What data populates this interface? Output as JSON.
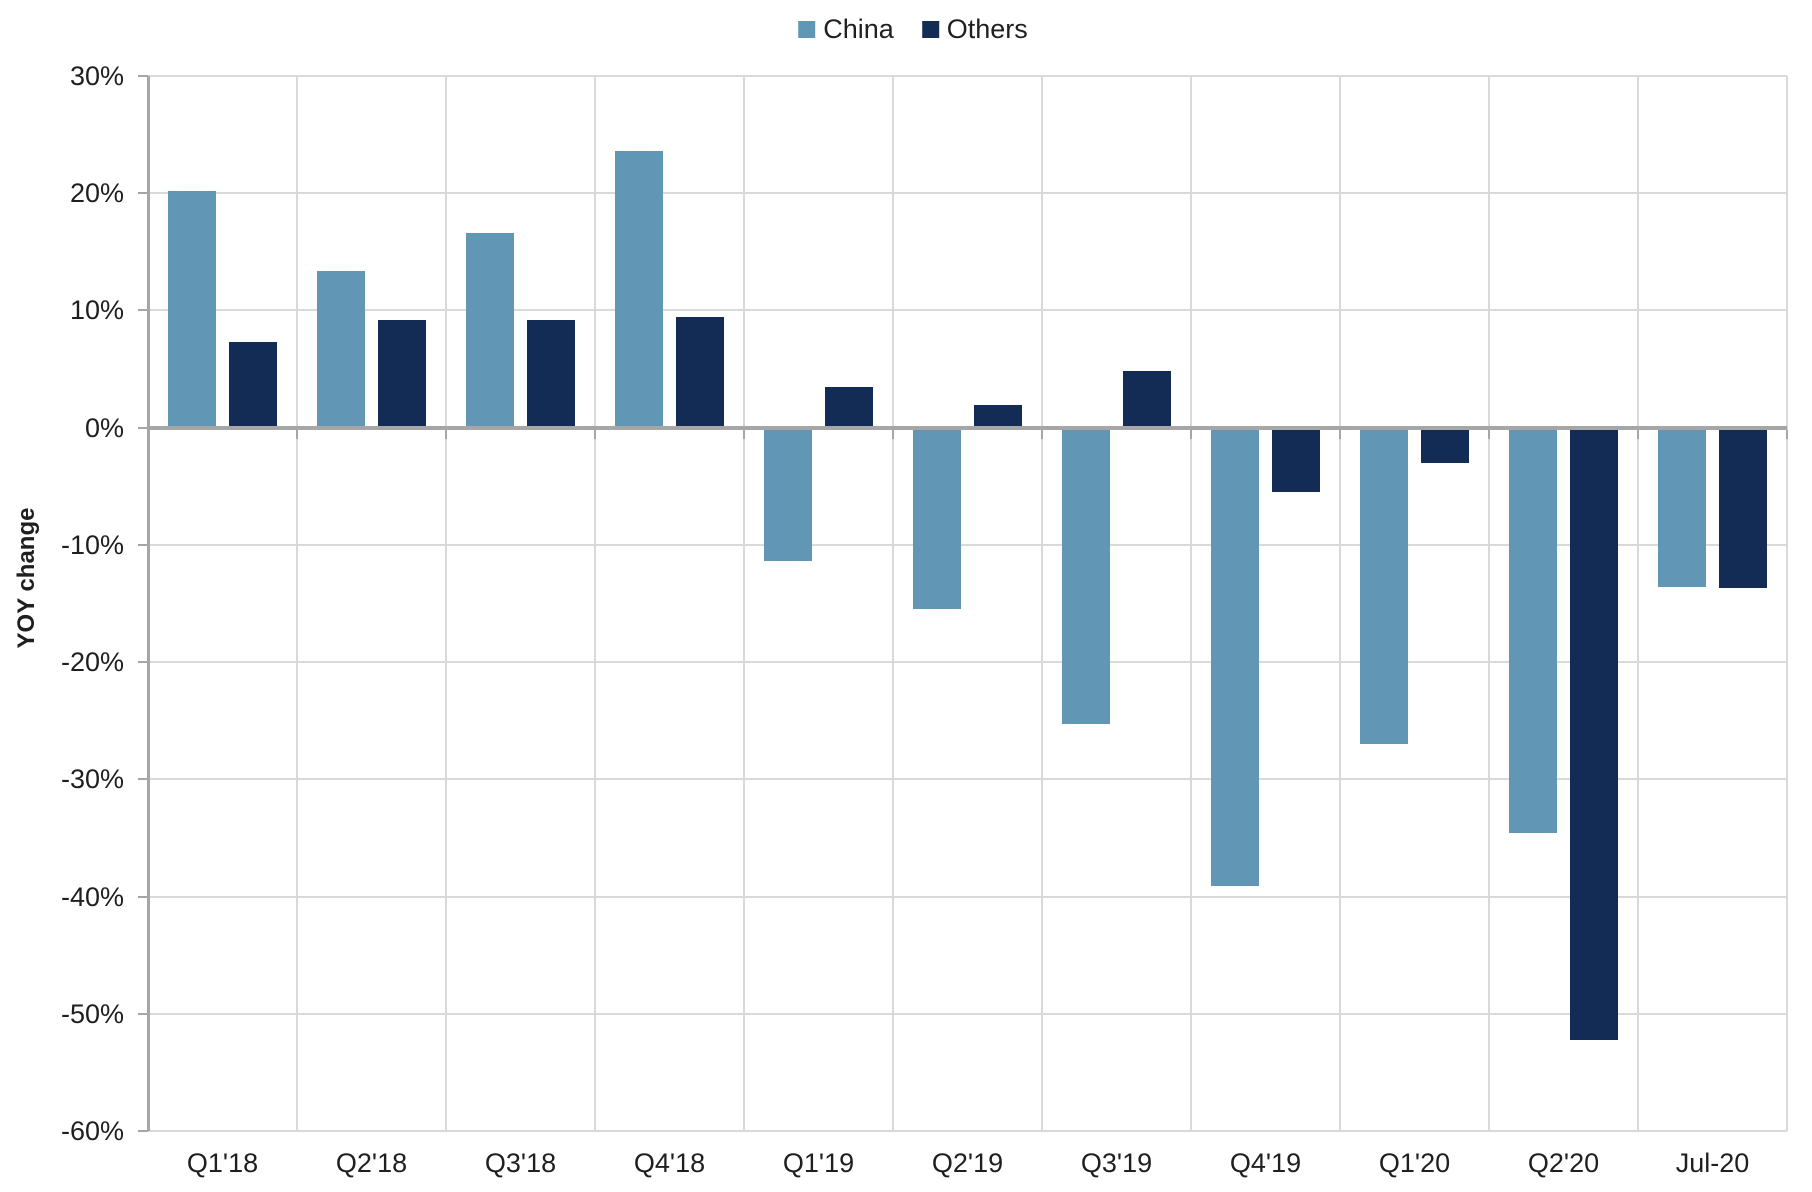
{
  "chart_data": {
    "type": "bar",
    "title": "",
    "xlabel": "",
    "ylabel": "YOY change",
    "categories": [
      "Q1'18",
      "Q2'18",
      "Q3'18",
      "Q4'18",
      "Q1'19",
      "Q2'19",
      "Q3'19",
      "Q4'19",
      "Q1'20",
      "Q2'20",
      "Jul-20"
    ],
    "series": [
      {
        "name": "China",
        "color": "#6197B5",
        "values": [
          20.2,
          13.4,
          16.6,
          23.6,
          -11.4,
          -15.5,
          -25.3,
          -39.1,
          -27.0,
          -34.6,
          -13.6
        ]
      },
      {
        "name": "Others",
        "color": "#122C55",
        "values": [
          7.3,
          9.2,
          9.2,
          9.4,
          3.5,
          1.9,
          4.8,
          -5.5,
          -3.0,
          -52.2,
          -13.7
        ]
      }
    ],
    "y_axis": {
      "min": -60,
      "max": 30,
      "step": 10,
      "tick_suffix": "%"
    },
    "y_tick_labels": [
      "30%",
      "20%",
      "10%",
      "0%",
      "-10%",
      "-20%",
      "-30%",
      "-40%",
      "-50%",
      "-60%"
    ],
    "legend_position": "top",
    "grid": true
  },
  "colors": {
    "gridline": "#D9D9D9",
    "axis": "#A6A6A6",
    "text": "#1F1F1F",
    "background": "#FFFFFF"
  }
}
